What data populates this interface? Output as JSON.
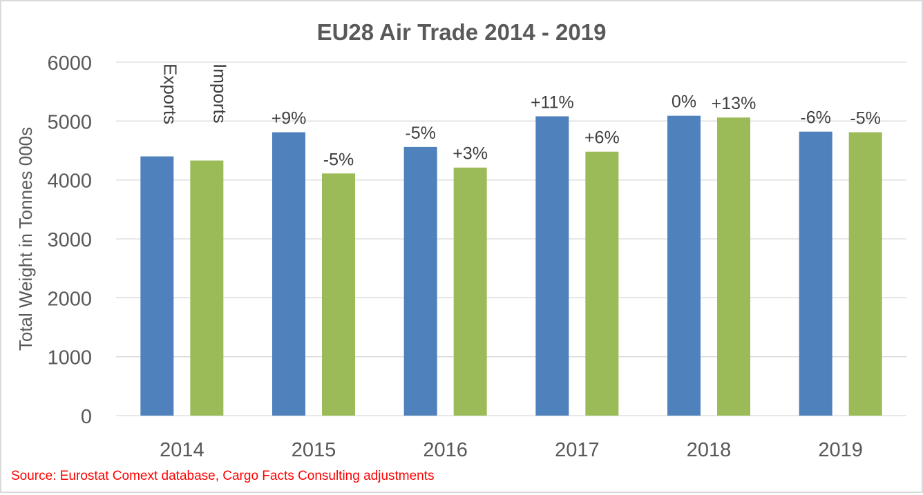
{
  "chart_data": {
    "type": "bar",
    "title": "EU28 Air Trade 2014 - 2019",
    "xlabel": "",
    "ylabel": "Total Weight in Tonnes 000s",
    "ylim": [
      0,
      6000
    ],
    "yticks": [
      "0",
      "1000",
      "2000",
      "3000",
      "4000",
      "5000",
      "6000"
    ],
    "ytick_values": [
      0,
      1000,
      2000,
      3000,
      4000,
      5000,
      6000
    ],
    "grid": true,
    "legend": "none",
    "categories": [
      "2014",
      "2015",
      "2016",
      "2017",
      "2018",
      "2019"
    ],
    "series": [
      {
        "name": "Exports",
        "color": "#4f81bd",
        "values": [
          4400,
          4810,
          4560,
          5080,
          5090,
          4820
        ],
        "data_labels": [
          "Exports",
          "+9%",
          "-5%",
          "+11%",
          "0%",
          "-6%"
        ]
      },
      {
        "name": "Imports",
        "color": "#9bbb59",
        "values": [
          4330,
          4110,
          4210,
          4480,
          5060,
          4810
        ],
        "data_labels": [
          "Imports",
          "-5%",
          "+3%",
          "+6%",
          "+13%",
          "-5%"
        ]
      }
    ]
  },
  "footer": {
    "source": "Source: Eurostat Comext database, Cargo Facts Consulting adjustments",
    "source_color": "#ff0000"
  }
}
